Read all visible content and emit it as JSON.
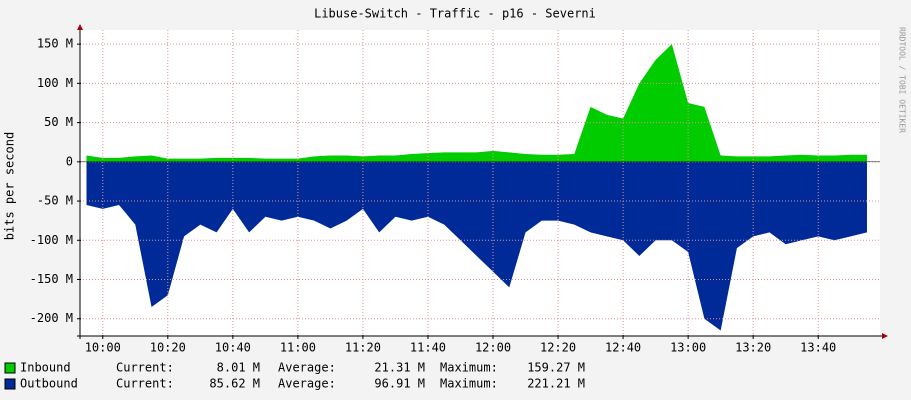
{
  "chart_data": {
    "type": "area",
    "title": "Libuse-Switch - Traffic - p16 - Severni",
    "y_label": "bits per second",
    "watermark": "RRDTOOL / TOBI OETIKER",
    "x": [
      "09:55",
      "10:00",
      "10:05",
      "10:10",
      "10:15",
      "10:20",
      "10:25",
      "10:30",
      "10:35",
      "10:40",
      "10:45",
      "10:50",
      "10:55",
      "11:00",
      "11:05",
      "11:10",
      "11:15",
      "11:20",
      "11:25",
      "11:30",
      "11:35",
      "11:40",
      "11:45",
      "11:50",
      "11:55",
      "12:00",
      "12:05",
      "12:10",
      "12:15",
      "12:20",
      "12:25",
      "12:30",
      "12:35",
      "12:40",
      "12:45",
      "12:50",
      "12:55",
      "13:00",
      "13:05",
      "13:10",
      "13:15",
      "13:20",
      "13:25",
      "13:30",
      "13:35",
      "13:40",
      "13:45",
      "13:50",
      "13:55"
    ],
    "xlim": [
      "09:53",
      "13:59"
    ],
    "xticks": [
      "10:00",
      "10:20",
      "10:40",
      "11:00",
      "11:20",
      "11:40",
      "12:00",
      "12:20",
      "12:40",
      "13:00",
      "13:20",
      "13:40"
    ],
    "ylim": [
      -222,
      168
    ],
    "yticks": [
      {
        "value": 150,
        "label": "150 M"
      },
      {
        "value": 100,
        "label": "100 M"
      },
      {
        "value": 50,
        "label": "50 M"
      },
      0,
      {
        "value": -50,
        "label": "-50 M"
      },
      {
        "value": -100,
        "label": "-100 M"
      },
      {
        "value": -150,
        "label": "-150 M"
      },
      {
        "value": -200,
        "label": "-200 M"
      }
    ],
    "grid": true,
    "series": [
      {
        "name": "Inbound",
        "color": "#00cc00",
        "values": [
          8,
          5,
          5,
          7,
          8,
          4,
          4,
          4,
          5,
          5,
          5,
          4,
          4,
          4,
          7,
          8,
          8,
          7,
          8,
          8,
          10,
          11,
          12,
          12,
          12,
          14,
          12,
          10,
          9,
          9,
          10,
          70,
          60,
          55,
          100,
          130,
          150,
          75,
          70,
          8,
          7,
          7,
          7,
          8,
          9,
          8,
          8,
          9,
          9
        ],
        "stats": [
          {
            "label": "Current:",
            "value": "8.01 M"
          },
          {
            "label": "Average:",
            "value": "21.31 M"
          },
          {
            "label": "Maximum:",
            "value": "159.27 M"
          }
        ]
      },
      {
        "name": "Outbound",
        "color": "#002a97",
        "values": [
          -55,
          -60,
          -55,
          -80,
          -185,
          -170,
          -95,
          -80,
          -90,
          -60,
          -90,
          -70,
          -75,
          -70,
          -75,
          -85,
          -75,
          -60,
          -90,
          -70,
          -75,
          -70,
          -80,
          -100,
          -120,
          -140,
          -160,
          -90,
          -75,
          -75,
          -80,
          -90,
          -95,
          -100,
          -120,
          -100,
          -100,
          -115,
          -200,
          -215,
          -110,
          -95,
          -90,
          -105,
          -100,
          -95,
          -100,
          -95,
          -90
        ],
        "stats": [
          {
            "label": "Current:",
            "value": "85.62 M"
          },
          {
            "label": "Average:",
            "value": "96.91 M"
          },
          {
            "label": "Maximum:",
            "value": "221.21 M"
          }
        ]
      }
    ]
  }
}
